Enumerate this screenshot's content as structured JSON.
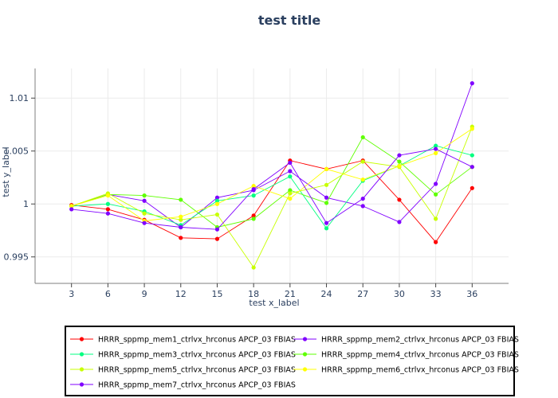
{
  "chart_data": {
    "type": "line",
    "title": "test title",
    "xlabel": "test x_label",
    "ylabel": "test y_label",
    "x": [
      3,
      6,
      9,
      12,
      15,
      18,
      21,
      24,
      27,
      30,
      33,
      36
    ],
    "xlim": [
      0,
      39
    ],
    "ylim": [
      0.9925,
      1.0128
    ],
    "x_ticks": [
      3,
      6,
      9,
      12,
      15,
      18,
      21,
      24,
      27,
      30,
      33,
      36
    ],
    "y_ticks": [
      0.995,
      1,
      1.005,
      1.01
    ],
    "y_tick_labels": [
      "0.995",
      "1",
      "1.005",
      "1.01"
    ],
    "grid": true,
    "legend_placement": "bottom",
    "series": [
      {
        "name": "HRRR_sppmp_mem1_ctrlvx_hrconus APCP_03 FBIAS",
        "color": "#ff0000",
        "values": [
          0.9999,
          0.9995,
          0.9985,
          0.9968,
          0.9967,
          0.9989,
          1.0041,
          1.0033,
          1.0041,
          1.0004,
          0.9964,
          1.0015
        ]
      },
      {
        "name": "HRRR_sppmp_mem2_ctrlvx_hrconus APCP_03 FBIAS",
        "color": "#8000ff",
        "values": [
          0.9998,
          1.0009,
          1.0003,
          0.9978,
          1.0006,
          1.0013,
          1.0031,
          1.0006,
          0.9998,
          0.9983,
          1.0019,
          1.0114
        ]
      },
      {
        "name": "HRRR_sppmp_mem3_ctrlvx_hrconus APCP_03 FBIAS",
        "color": "#00ff80",
        "values": [
          0.9998,
          1.0,
          0.9993,
          0.998,
          1.0003,
          1.0008,
          1.0026,
          0.9977,
          1.0022,
          1.0036,
          1.0055,
          1.0046
        ]
      },
      {
        "name": "HRRR_sppmp_mem4_ctrlvx_hrconus APCP_03 FBIAS",
        "color": "#5eff00",
        "values": [
          0.9998,
          1.0009,
          1.0008,
          1.0004,
          0.9978,
          0.9986,
          1.0013,
          1.0001,
          1.0063,
          1.004,
          1.0009,
          1.0035
        ]
      },
      {
        "name": "HRRR_sppmp_mem5_ctrlvx_hrconus APCP_03 FBIAS",
        "color": "#c8ff00",
        "values": [
          0.9998,
          1.001,
          0.9991,
          0.9985,
          0.999,
          0.994,
          1.001,
          1.0018,
          1.004,
          1.0035,
          0.9986,
          1.0073
        ]
      },
      {
        "name": "HRRR_sppmp_mem6_ctrlvx_hrconus APCP_03 FBIAS",
        "color": "#ffff00",
        "values": [
          0.9998,
          1.0008,
          0.9984,
          0.9988,
          1.0,
          1.0017,
          1.0005,
          1.0033,
          1.0023,
          1.0036,
          1.0048,
          1.0071
        ]
      },
      {
        "name": "HRRR_sppmp_mem7_ctrlvx_hrconus APCP_03 FBIAS",
        "color": "#8000ff",
        "values": [
          0.9995,
          0.9991,
          0.9982,
          0.9978,
          0.9976,
          1.0014,
          1.0039,
          0.9982,
          1.0005,
          1.0046,
          1.0052,
          1.0035
        ]
      }
    ]
  }
}
